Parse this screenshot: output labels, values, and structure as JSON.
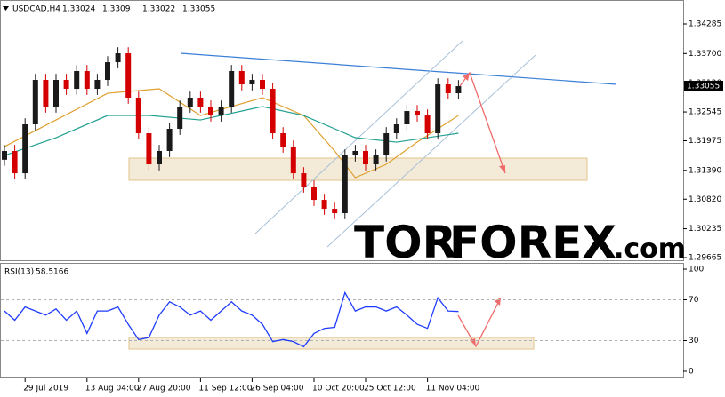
{
  "chart_data": [
    {
      "type": "candlestick",
      "title": "USDCAD,H4",
      "header_values": [
        1.33024,
        1.3309,
        1.33022,
        1.33055
      ],
      "categories": [
        null,
        null,
        "29 Jul 2019",
        null,
        null,
        null,
        null,
        null,
        "13 Aug 04:00",
        null,
        null,
        null,
        null,
        "27 Aug 20:00",
        null,
        null,
        null,
        null,
        null,
        "11 Sep 12:00",
        null,
        null,
        null,
        null,
        "26 Sep 04:00",
        null,
        null,
        null,
        null,
        null,
        "10 Oct 20:00",
        null,
        null,
        null,
        null,
        "25 Oct 12:00",
        null,
        null,
        null,
        null,
        null,
        "11 Nov 04:00",
        null,
        null,
        null
      ],
      "open": [
        1.316,
        1.31773,
        1.31333,
        1.323,
        1.33178,
        1.32651,
        1.33178,
        1.33002,
        1.33354,
        1.33002,
        1.33178,
        1.33529,
        1.33705,
        1.32827,
        1.32124,
        1.31509,
        1.31773,
        1.32212,
        1.32651,
        1.32827,
        1.32651,
        1.32475,
        1.32651,
        1.33354,
        1.3309,
        1.33178,
        1.33002,
        1.32124,
        1.3186,
        1.31333,
        1.3107,
        1.30806,
        1.3063,
        1.30543,
        1.31685,
        1.31773,
        1.31509,
        1.31685,
        1.32124,
        1.323,
        1.32563,
        1.32475,
        1.32124,
        1.3309,
        1.32915
      ],
      "high": [
        1.31893,
        1.31893,
        1.3242,
        1.33298,
        1.33298,
        1.33298,
        1.33298,
        1.33474,
        1.33474,
        1.33298,
        1.33649,
        1.33825,
        1.33825,
        1.32947,
        1.32244,
        1.31893,
        1.32332,
        1.32771,
        1.32947,
        1.32947,
        1.32771,
        1.32771,
        1.33474,
        1.33474,
        1.33298,
        1.33298,
        1.33122,
        1.32244,
        1.3198,
        1.31453,
        1.3119,
        1.30926,
        1.3075,
        1.31805,
        1.31893,
        1.31893,
        1.31805,
        1.32244,
        1.3242,
        1.32683,
        1.32683,
        1.32595,
        1.3321,
        1.3321,
        1.33175
      ],
      "low": [
        1.3148,
        1.31213,
        1.31213,
        1.3218,
        1.32531,
        1.32531,
        1.32882,
        1.32882,
        1.32882,
        1.32882,
        1.33058,
        1.33409,
        1.32707,
        1.32004,
        1.31389,
        1.31389,
        1.31653,
        1.32092,
        1.32531,
        1.32531,
        1.32355,
        1.32355,
        1.32531,
        1.3297,
        1.3297,
        1.32882,
        1.32004,
        1.3174,
        1.31213,
        1.3095,
        1.30686,
        1.3051,
        1.30423,
        1.30423,
        1.31565,
        1.31389,
        1.31389,
        1.31565,
        1.32004,
        1.3218,
        1.32355,
        1.32004,
        1.32004,
        1.32795,
        1.32795
      ],
      "close": [
        1.31773,
        1.31333,
        1.323,
        1.33178,
        1.32651,
        1.33178,
        1.33002,
        1.33354,
        1.33002,
        1.33178,
        1.33529,
        1.33705,
        1.32827,
        1.32124,
        1.31509,
        1.31773,
        1.32212,
        1.32651,
        1.32827,
        1.32651,
        1.32475,
        1.32651,
        1.33354,
        1.3309,
        1.33178,
        1.33002,
        1.32124,
        1.3186,
        1.31333,
        1.3107,
        1.30806,
        1.3063,
        1.30543,
        1.31685,
        1.31773,
        1.31509,
        1.31685,
        1.32124,
        1.323,
        1.32563,
        1.32475,
        1.32124,
        1.3309,
        1.32915,
        1.33055
      ],
      "up_color": "#1a1a1a",
      "down_color": "#d40000",
      "lines": [
        {
          "color": "#e0a030",
          "x": [
            0,
            5,
            10,
            15,
            19,
            25,
            29,
            32,
            34,
            37,
            40,
            44
          ],
          "values": [
            1.3186,
            1.32387,
            1.32914,
            1.33002,
            1.32475,
            1.32827,
            1.32475,
            1.31773,
            1.31246,
            1.31509,
            1.31948,
            1.32475
          ]
        },
        {
          "color": "#20a090",
          "x": [
            0,
            5,
            10,
            14,
            19,
            25,
            29,
            34,
            38,
            44
          ],
          "values": [
            1.31685,
            1.32036,
            1.32475,
            1.32475,
            1.32387,
            1.32651,
            1.32475,
            1.32036,
            1.31948,
            1.32124
          ]
        }
      ],
      "ylim": [
        1.29665,
        1.34285
      ],
      "yticks": [
        1.34285,
        {
          "value": 1.337,
          "label": "1.33700"
        },
        {
          "value": 1.3312,
          "label": "1.33120"
        },
        1.32545,
        1.31975,
        {
          "value": 1.3139,
          "label": "1.31390"
        },
        {
          "value": 1.3082,
          "label": "1.30820"
        },
        1.30235,
        1.29665
      ]
    },
    {
      "type": "line",
      "title": "RSI(13)",
      "header_values": [
        58.5166
      ],
      "color": "#1e3cff",
      "values": [
        59,
        50,
        63,
        59,
        55,
        61,
        50,
        59,
        37,
        59,
        59,
        63,
        46,
        31,
        33,
        55,
        68,
        63,
        55,
        59,
        50,
        59,
        68,
        59,
        55,
        46,
        29,
        31,
        29,
        24,
        37,
        42,
        43,
        77,
        59,
        63,
        63,
        59,
        63,
        55,
        46,
        42,
        72,
        59,
        58.5166
      ],
      "ylim": [
        0,
        100
      ],
      "yticks": [
        100,
        70,
        30,
        0
      ],
      "levels": [
        70,
        30
      ]
    }
  ],
  "watermark": {
    "tor": "TOR",
    "forex": "FOREX",
    "com": ".com"
  }
}
